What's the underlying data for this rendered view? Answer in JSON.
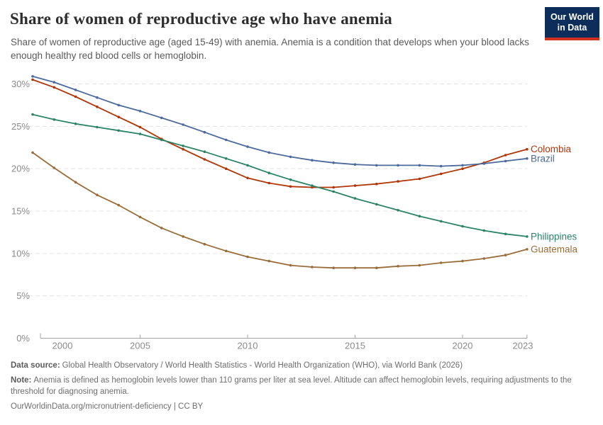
{
  "header": {
    "title": "Share of women of reproductive age who have anemia",
    "subtitle": "Share of women of reproductive age (aged 15-49) with anemia. Anemia is a condition that develops when your blood lacks enough healthy red blood cells or hemoglobin.",
    "logo": {
      "line1": "Our World",
      "line2": "in Data",
      "bg_color": "#0d2e5a",
      "stripe_color": "#d0301f"
    }
  },
  "chart_data": {
    "type": "line",
    "x": [
      2000,
      2001,
      2002,
      2003,
      2004,
      2005,
      2006,
      2007,
      2008,
      2009,
      2010,
      2011,
      2012,
      2013,
      2014,
      2015,
      2016,
      2017,
      2018,
      2019,
      2020,
      2021,
      2022,
      2023
    ],
    "x_ticks": [
      2000,
      2005,
      2010,
      2015,
      2020,
      2023
    ],
    "y_ticks": [
      0,
      5,
      10,
      15,
      20,
      25,
      30
    ],
    "y_tick_suffix": "%",
    "ylim": [
      0,
      31.5
    ],
    "xlabel": "",
    "ylabel": "",
    "grid": "horizontal-dashed",
    "legend_position": "right-of-line-ends",
    "series": [
      {
        "name": "Colombia",
        "color": "#B13507",
        "values": [
          30.5,
          29.6,
          28.5,
          27.3,
          26.1,
          24.9,
          23.5,
          22.3,
          21.1,
          20.0,
          18.9,
          18.3,
          17.9,
          17.8,
          17.8,
          18.0,
          18.2,
          18.5,
          18.8,
          19.4,
          20.0,
          20.7,
          21.6,
          22.3
        ]
      },
      {
        "name": "Brazil",
        "color": "#4C6A9C",
        "values": [
          30.9,
          30.2,
          29.3,
          28.4,
          27.5,
          26.8,
          26.0,
          25.2,
          24.3,
          23.4,
          22.6,
          21.9,
          21.4,
          21.0,
          20.7,
          20.5,
          20.4,
          20.4,
          20.4,
          20.3,
          20.4,
          20.6,
          20.9,
          21.2
        ]
      },
      {
        "name": "Philippines",
        "color": "#2C8465",
        "values": [
          26.4,
          25.8,
          25.3,
          24.9,
          24.5,
          24.1,
          23.4,
          22.7,
          22.0,
          21.2,
          20.4,
          19.5,
          18.7,
          18.0,
          17.3,
          16.5,
          15.8,
          15.1,
          14.4,
          13.8,
          13.2,
          12.7,
          12.3,
          12.0
        ]
      },
      {
        "name": "Guatemala",
        "color": "#996D39",
        "values": [
          21.9,
          20.1,
          18.4,
          16.9,
          15.7,
          14.3,
          13.0,
          12.0,
          11.1,
          10.3,
          9.6,
          9.1,
          8.6,
          8.4,
          8.3,
          8.3,
          8.3,
          8.5,
          8.6,
          8.9,
          9.1,
          9.4,
          9.8,
          10.5
        ]
      }
    ],
    "axis_color": "#a3a3a3",
    "grid_color": "#e3e3e3",
    "tick_label_color": "#8a8a8a"
  },
  "footer": {
    "data_source_label": "Data source:",
    "data_source": "Global Health Observatory / World Health Statistics - World Health Organization (WHO), via World Bank (2026)",
    "note_label": "Note:",
    "note": "Anemia is defined as hemoglobin levels lower than 110 grams per liter at sea level. Altitude can affect hemoglobin levels, requiring adjustments to the threshold for diagnosing anemia.",
    "attribution": "OurWorldinData.org/micronutrient-deficiency | CC BY"
  }
}
